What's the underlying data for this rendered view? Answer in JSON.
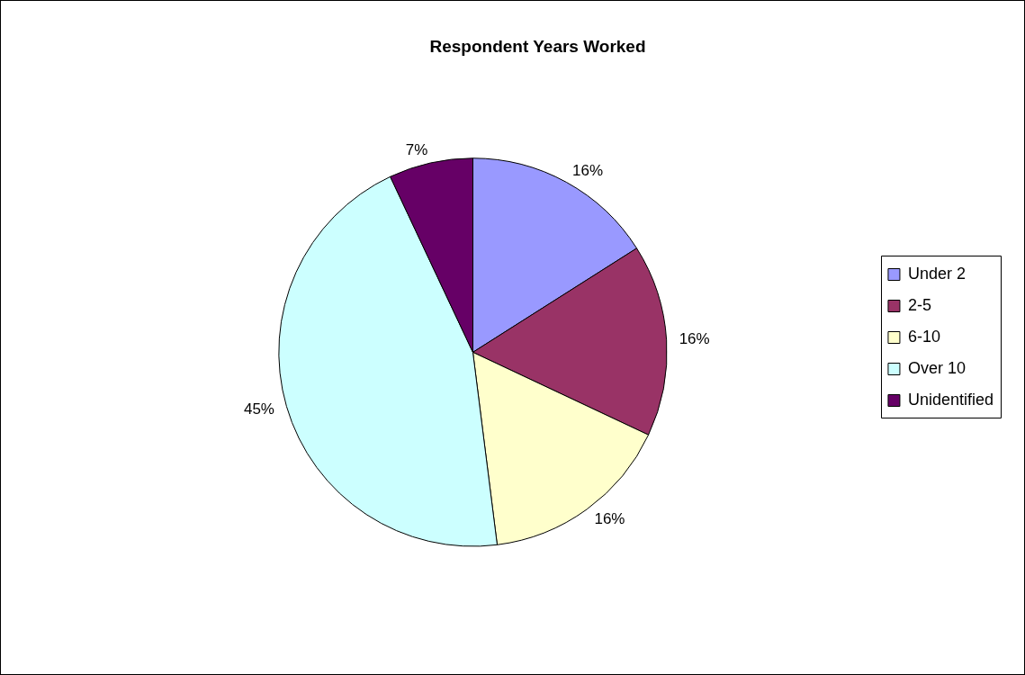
{
  "chart_data": {
    "type": "pie",
    "title": "Respondent Years Worked",
    "categories": [
      "Under 2",
      "2-5",
      "6-10",
      "Over 10",
      "Unidentified"
    ],
    "values": [
      16,
      16,
      16,
      45,
      7
    ],
    "colors": [
      "#9999ff",
      "#993366",
      "#ffffcc",
      "#ccffff",
      "#660066"
    ],
    "value_labels": [
      "16%",
      "16%",
      "16%",
      "45%",
      "7%"
    ],
    "legend": "right"
  }
}
